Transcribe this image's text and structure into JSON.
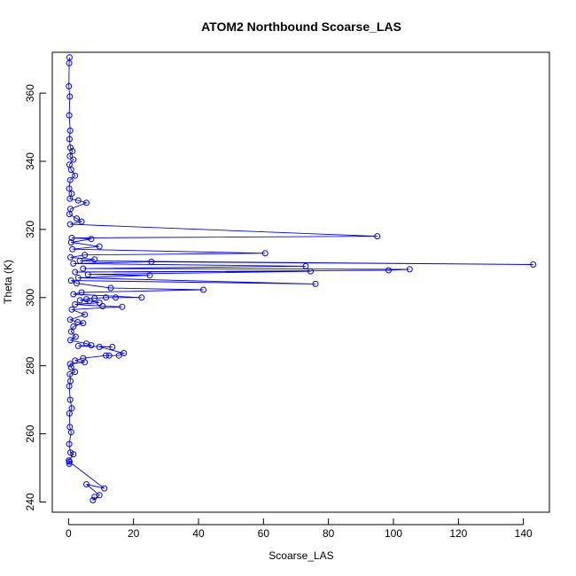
{
  "chart_data": {
    "type": "line",
    "title": "ATOM2 Northbound Scoarse_LAS",
    "xlabel": "Scoarse_LAS",
    "ylabel": "Theta (K)",
    "xlim": [
      -5,
      148
    ],
    "ylim": [
      237,
      372
    ],
    "xticks": [
      0,
      20,
      40,
      60,
      80,
      100,
      120,
      140
    ],
    "yticks": [
      240,
      260,
      280,
      300,
      320,
      340,
      360
    ],
    "grid": false,
    "legend": "none",
    "marker": "open-circle",
    "color": "#0000ff",
    "series": [
      {
        "points": [
          [
            0.3,
            370.5
          ],
          [
            0.2,
            368.8
          ],
          [
            0.1,
            362.0
          ],
          [
            0.4,
            359.0
          ],
          [
            0.2,
            353.5
          ],
          [
            0.5,
            349.0
          ],
          [
            0.3,
            346.5
          ],
          [
            0.6,
            344.0
          ],
          [
            1.2,
            343.0
          ],
          [
            0.4,
            341.5
          ],
          [
            1.5,
            340.5
          ],
          [
            0.3,
            339.0
          ],
          [
            0.8,
            337.5
          ],
          [
            2.0,
            335.8
          ],
          [
            0.5,
            334.5
          ],
          [
            0.2,
            332.0
          ],
          [
            1.0,
            330.5
          ],
          [
            0.4,
            329.0
          ],
          [
            3.0,
            328.5
          ],
          [
            5.5,
            327.8
          ],
          [
            0.6,
            326.0
          ],
          [
            0.3,
            324.5
          ],
          [
            2.5,
            323.2
          ],
          [
            4.0,
            322.3
          ],
          [
            0.5,
            321.5
          ],
          [
            95.0,
            318.0
          ],
          [
            1.0,
            317.5
          ],
          [
            7.0,
            317.2
          ],
          [
            0.8,
            316.2
          ],
          [
            9.5,
            315.0
          ],
          [
            1.2,
            314.2
          ],
          [
            60.5,
            313.0
          ],
          [
            5.0,
            312.5
          ],
          [
            0.6,
            311.8
          ],
          [
            8.0,
            311.2
          ],
          [
            3.5,
            310.8
          ],
          [
            143.0,
            309.7
          ],
          [
            25.5,
            310.5
          ],
          [
            1.5,
            310.0
          ],
          [
            73.0,
            309.2
          ],
          [
            4.5,
            308.5
          ],
          [
            105.0,
            308.3
          ],
          [
            98.5,
            308.0
          ],
          [
            2.0,
            307.5
          ],
          [
            74.5,
            307.7
          ],
          [
            6.0,
            306.8
          ],
          [
            25.0,
            306.5
          ],
          [
            3.0,
            305.8
          ],
          [
            76.0,
            304.0
          ],
          [
            0.8,
            305.0
          ],
          [
            2.5,
            304.2
          ],
          [
            13.0,
            302.8
          ],
          [
            41.5,
            302.3
          ],
          [
            4.0,
            301.5
          ],
          [
            1.5,
            301.0
          ],
          [
            22.5,
            300.0
          ],
          [
            14.5,
            300.0
          ],
          [
            11.5,
            300.0
          ],
          [
            8.0,
            299.8
          ],
          [
            5.5,
            299.5
          ],
          [
            3.5,
            299.2
          ],
          [
            6.5,
            299.0
          ],
          [
            9.5,
            298.5
          ],
          [
            2.0,
            298.0
          ],
          [
            10.5,
            297.5
          ],
          [
            16.5,
            297.3
          ],
          [
            1.0,
            296.5
          ],
          [
            5.0,
            295.0
          ],
          [
            0.5,
            293.5
          ],
          [
            2.8,
            292.8
          ],
          [
            4.5,
            292.5
          ],
          [
            1.5,
            291.5
          ],
          [
            0.8,
            290.0
          ],
          [
            2.2,
            288.5
          ],
          [
            0.6,
            287.5
          ],
          [
            5.5,
            286.5
          ],
          [
            7.0,
            286.0
          ],
          [
            3.0,
            285.8
          ],
          [
            13.5,
            285.5
          ],
          [
            9.5,
            285.5
          ],
          [
            17.0,
            283.7
          ],
          [
            15.5,
            283.0
          ],
          [
            12.5,
            283.0
          ],
          [
            11.5,
            283.0
          ],
          [
            4.5,
            282.2
          ],
          [
            2.0,
            281.5
          ],
          [
            5.0,
            281.0
          ],
          [
            0.5,
            280.5
          ],
          [
            0.8,
            279.5
          ],
          [
            2.0,
            278.2
          ],
          [
            0.4,
            277.5
          ],
          [
            0.6,
            275.5
          ],
          [
            0.2,
            274.0
          ],
          [
            0.5,
            270.0
          ],
          [
            1.0,
            267.5
          ],
          [
            0.3,
            266.0
          ],
          [
            0.4,
            262.0
          ],
          [
            0.8,
            260.5
          ],
          [
            0.2,
            257.0
          ],
          [
            0.6,
            254.5
          ],
          [
            1.5,
            254.0
          ],
          [
            0.1,
            252.2
          ],
          [
            0.2,
            251.2
          ],
          [
            0.3,
            251.8
          ],
          [
            11.0,
            244.0
          ],
          [
            5.5,
            245.2
          ],
          [
            9.5,
            242.0
          ],
          [
            7.5,
            240.5
          ],
          [
            8.0,
            241.5
          ]
        ]
      }
    ]
  }
}
